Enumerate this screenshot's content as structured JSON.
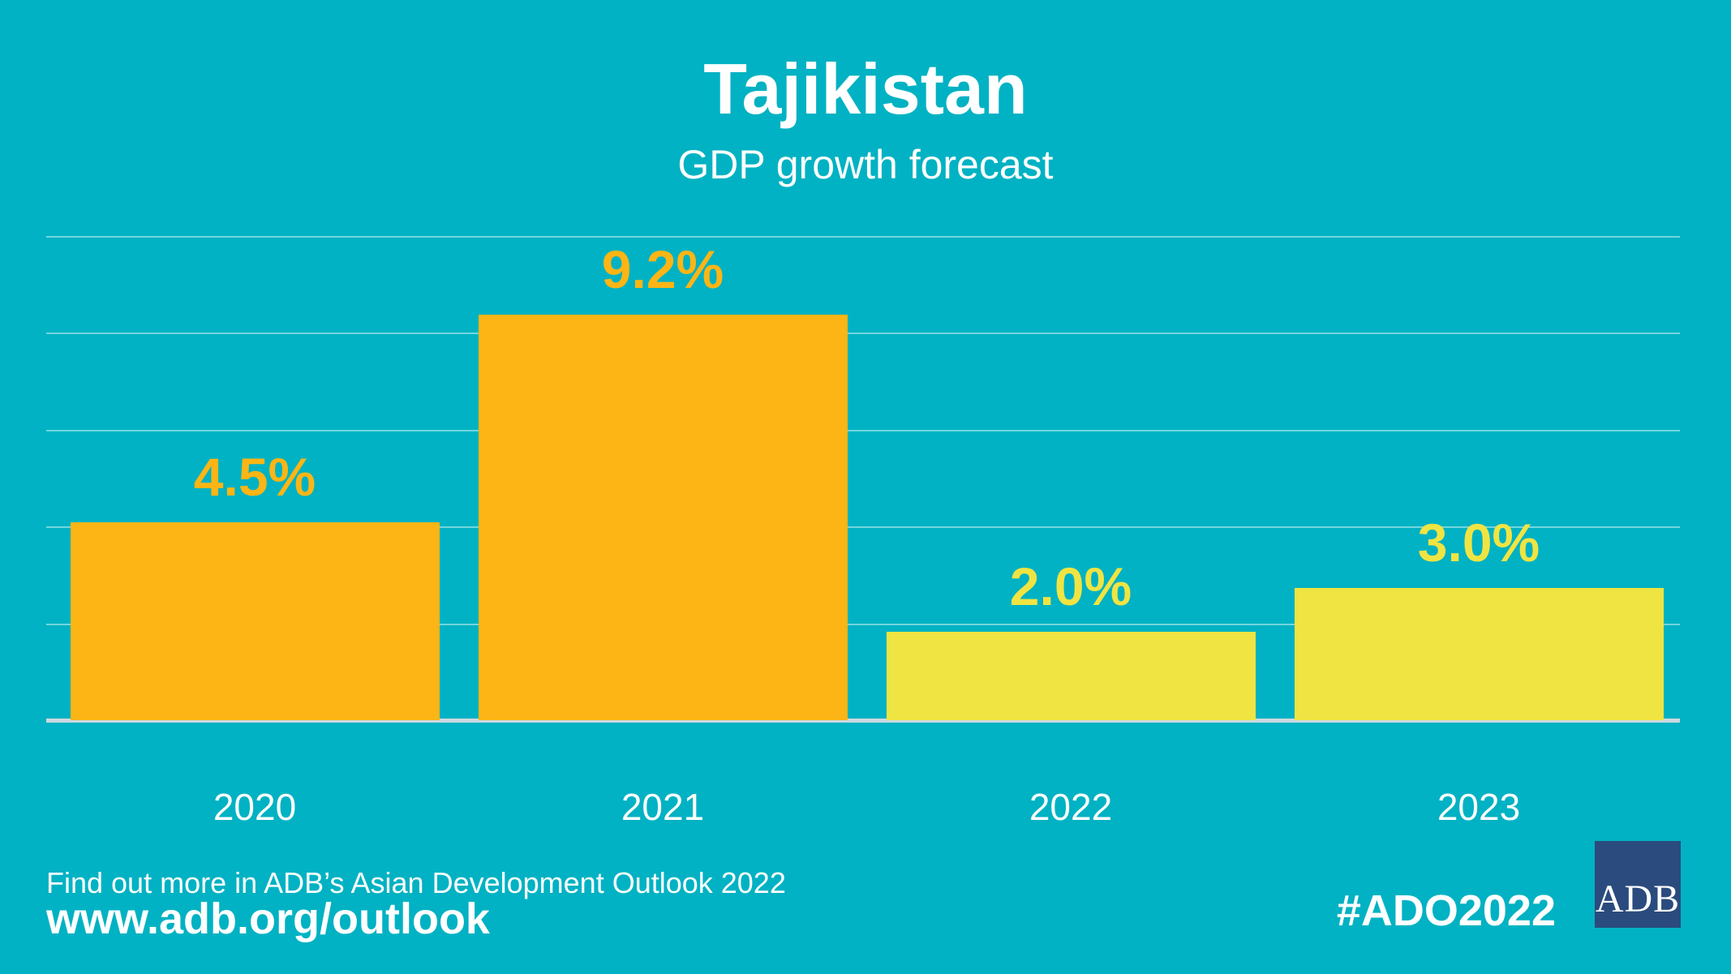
{
  "title": "Tajikistan",
  "subtitle": "GDP growth forecast",
  "chart_data": {
    "type": "bar",
    "title": "Tajikistan",
    "subtitle": "GDP growth forecast",
    "categories": [
      "2020",
      "2021",
      "2022",
      "2023"
    ],
    "values": [
      4.5,
      9.2,
      2.0,
      3.0
    ],
    "value_labels": [
      "4.5%",
      "9.2%",
      "2.0%",
      "3.0%"
    ],
    "bar_colors": [
      "#FDB515",
      "#FDB515",
      "#F0E442",
      "#F0E442"
    ],
    "xlabel": "",
    "ylabel": "",
    "ylim": [
      0,
      11
    ],
    "gridline_values": [
      2.2,
      4.4,
      6.6,
      8.8,
      11
    ],
    "grid": "horizontal unlabeled gridlines, baseline axis at 0",
    "legend": "none"
  },
  "footer": {
    "note": "Find out more in ADB’s Asian Development Outlook 2022",
    "url": "www.adb.org/outlook",
    "hashtag": "#ADO2022"
  },
  "logo": {
    "text": "ADB"
  },
  "colors": {
    "background": "#00B2C3",
    "orange": "#FDB515",
    "yellow": "#F0E442",
    "text": "#FFFFFF",
    "logo_navy": "#2B4B7E",
    "axis_line": "#CDD9E0"
  }
}
